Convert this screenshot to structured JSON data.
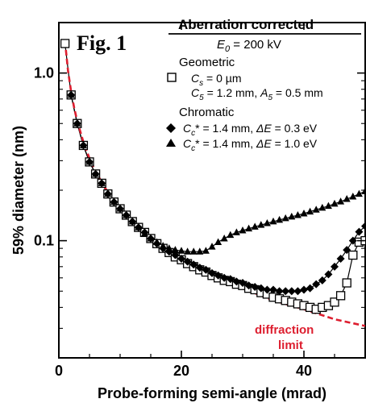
{
  "chart_data": {
    "type": "line",
    "figure_label": "Fig. 1",
    "title": "Aberration corrected",
    "subtitle": "E0 = 200 kV",
    "xlabel": "Probe-forming semi-angle (mrad)",
    "ylabel": "59% diameter (nm)",
    "x_scale": "linear",
    "y_scale": "log",
    "xlim": [
      0,
      50
    ],
    "ylim": [
      0.02,
      2.0
    ],
    "x_ticks": [
      0,
      20,
      40
    ],
    "y_ticks": [
      {
        "value": 1.0,
        "label": "1.0"
      },
      {
        "value": 0.1,
        "label": "0.1"
      }
    ],
    "grid": false,
    "legend_position": "top-right",
    "legend": {
      "title_text": "Aberration corrected",
      "e0_symbol": "E",
      "e0_sub": "0",
      "e0_value": " = 200 kV",
      "geometric_header": "Geometric",
      "geometric_line1": "C",
      "geometric_line1_sub": "s",
      "geometric_line1_rest": " = 0 µm",
      "geometric_line2": "C",
      "geometric_line2_sub": "5",
      "geometric_line2_mid": " = 1.2 mm, ",
      "geometric_line2_a": "A",
      "geometric_line2_a_sub": "5",
      "geometric_line2_rest": " = 0.5 mm",
      "chromatic_header": "Chromatic",
      "chromatic_line1_c": "C",
      "chromatic_line1_sub": "c",
      "chromatic_line1_mid": "* = 1.4 mm, ",
      "chromatic_line1_de": "ΔE",
      "chromatic_line1_rest": " = 0.3 eV",
      "chromatic_line2_c": "C",
      "chromatic_line2_sub": "c",
      "chromatic_line2_mid": "* = 1.4 mm, ",
      "chromatic_line2_de": "ΔE",
      "chromatic_line2_rest": " = 1.0 eV"
    },
    "annotation": {
      "line1": "diffraction",
      "line2": "limit",
      "color": "#dd1e2f"
    },
    "colors": {
      "axes": "#000000",
      "diffraction": "#dd1e2f"
    },
    "series": [
      {
        "marker": "open-square",
        "color": "#000000",
        "x": [
          1,
          2,
          3,
          4,
          5,
          6,
          7,
          8,
          9,
          10,
          11,
          12,
          13,
          14,
          15,
          16,
          17,
          18,
          19,
          20,
          21,
          22,
          23,
          24,
          25,
          26,
          27,
          28,
          29,
          30,
          31,
          32,
          33,
          34,
          35,
          36,
          37,
          38,
          39,
          40,
          41,
          42,
          43,
          44,
          45,
          46,
          47,
          48,
          49,
          50
        ],
        "y": [
          1.5,
          0.74,
          0.5,
          0.37,
          0.295,
          0.25,
          0.22,
          0.19,
          0.17,
          0.155,
          0.142,
          0.13,
          0.12,
          0.112,
          0.103,
          0.096,
          0.09,
          0.085,
          0.08,
          0.077,
          0.073,
          0.07,
          0.067,
          0.065,
          0.062,
          0.06,
          0.058,
          0.057,
          0.055,
          0.054,
          0.052,
          0.051,
          0.049,
          0.048,
          0.046,
          0.045,
          0.044,
          0.043,
          0.042,
          0.041,
          0.04,
          0.039,
          0.04,
          0.041,
          0.043,
          0.047,
          0.056,
          0.082,
          0.098,
          0.1
        ]
      },
      {
        "marker": "filled-diamond",
        "color": "#000000",
        "x": [
          2,
          3,
          4,
          5,
          6,
          7,
          8,
          9,
          10,
          11,
          12,
          13,
          14,
          15,
          16,
          17,
          18,
          19,
          20,
          21,
          22,
          23,
          24,
          25,
          26,
          27,
          28,
          29,
          30,
          31,
          32,
          33,
          34,
          35,
          36,
          37,
          38,
          39,
          40,
          41,
          42,
          43,
          44,
          45,
          46,
          47,
          48,
          49,
          50
        ],
        "y": [
          0.74,
          0.5,
          0.37,
          0.295,
          0.25,
          0.22,
          0.19,
          0.17,
          0.155,
          0.142,
          0.13,
          0.12,
          0.112,
          0.103,
          0.096,
          0.09,
          0.086,
          0.082,
          0.078,
          0.075,
          0.072,
          0.069,
          0.067,
          0.064,
          0.062,
          0.06,
          0.059,
          0.057,
          0.056,
          0.054,
          0.053,
          0.052,
          0.051,
          0.051,
          0.05,
          0.05,
          0.05,
          0.05,
          0.051,
          0.052,
          0.055,
          0.058,
          0.063,
          0.07,
          0.078,
          0.088,
          0.1,
          0.113,
          0.122
        ]
      },
      {
        "marker": "filled-triangle",
        "color": "#000000",
        "x": [
          2,
          3,
          4,
          5,
          6,
          7,
          8,
          9,
          10,
          11,
          12,
          13,
          14,
          15,
          16,
          17,
          18,
          19,
          20,
          21,
          22,
          23,
          24,
          25,
          26,
          27,
          28,
          29,
          30,
          31,
          32,
          33,
          34,
          35,
          36,
          37,
          38,
          39,
          40,
          41,
          42,
          43,
          44,
          45,
          46,
          47,
          48,
          49,
          50
        ],
        "y": [
          0.74,
          0.5,
          0.37,
          0.295,
          0.25,
          0.22,
          0.19,
          0.17,
          0.155,
          0.142,
          0.13,
          0.12,
          0.11,
          0.103,
          0.098,
          0.093,
          0.09,
          0.088,
          0.087,
          0.086,
          0.086,
          0.086,
          0.087,
          0.092,
          0.098,
          0.103,
          0.108,
          0.112,
          0.115,
          0.118,
          0.121,
          0.124,
          0.127,
          0.13,
          0.133,
          0.136,
          0.139,
          0.142,
          0.145,
          0.149,
          0.153,
          0.157,
          0.161,
          0.166,
          0.171,
          0.177,
          0.183,
          0.19,
          0.197
        ]
      },
      {
        "marker": "dashed-line",
        "color": "#dd1e2f",
        "x": [
          1,
          1.5,
          2,
          2.5,
          3,
          4,
          5,
          6,
          8,
          10,
          12,
          15,
          18,
          21,
          25,
          30,
          35,
          40,
          45,
          50
        ],
        "y": [
          1.55,
          1.03,
          0.775,
          0.62,
          0.517,
          0.388,
          0.31,
          0.258,
          0.194,
          0.155,
          0.129,
          0.103,
          0.086,
          0.074,
          0.062,
          0.052,
          0.044,
          0.039,
          0.034,
          0.031
        ]
      }
    ]
  }
}
